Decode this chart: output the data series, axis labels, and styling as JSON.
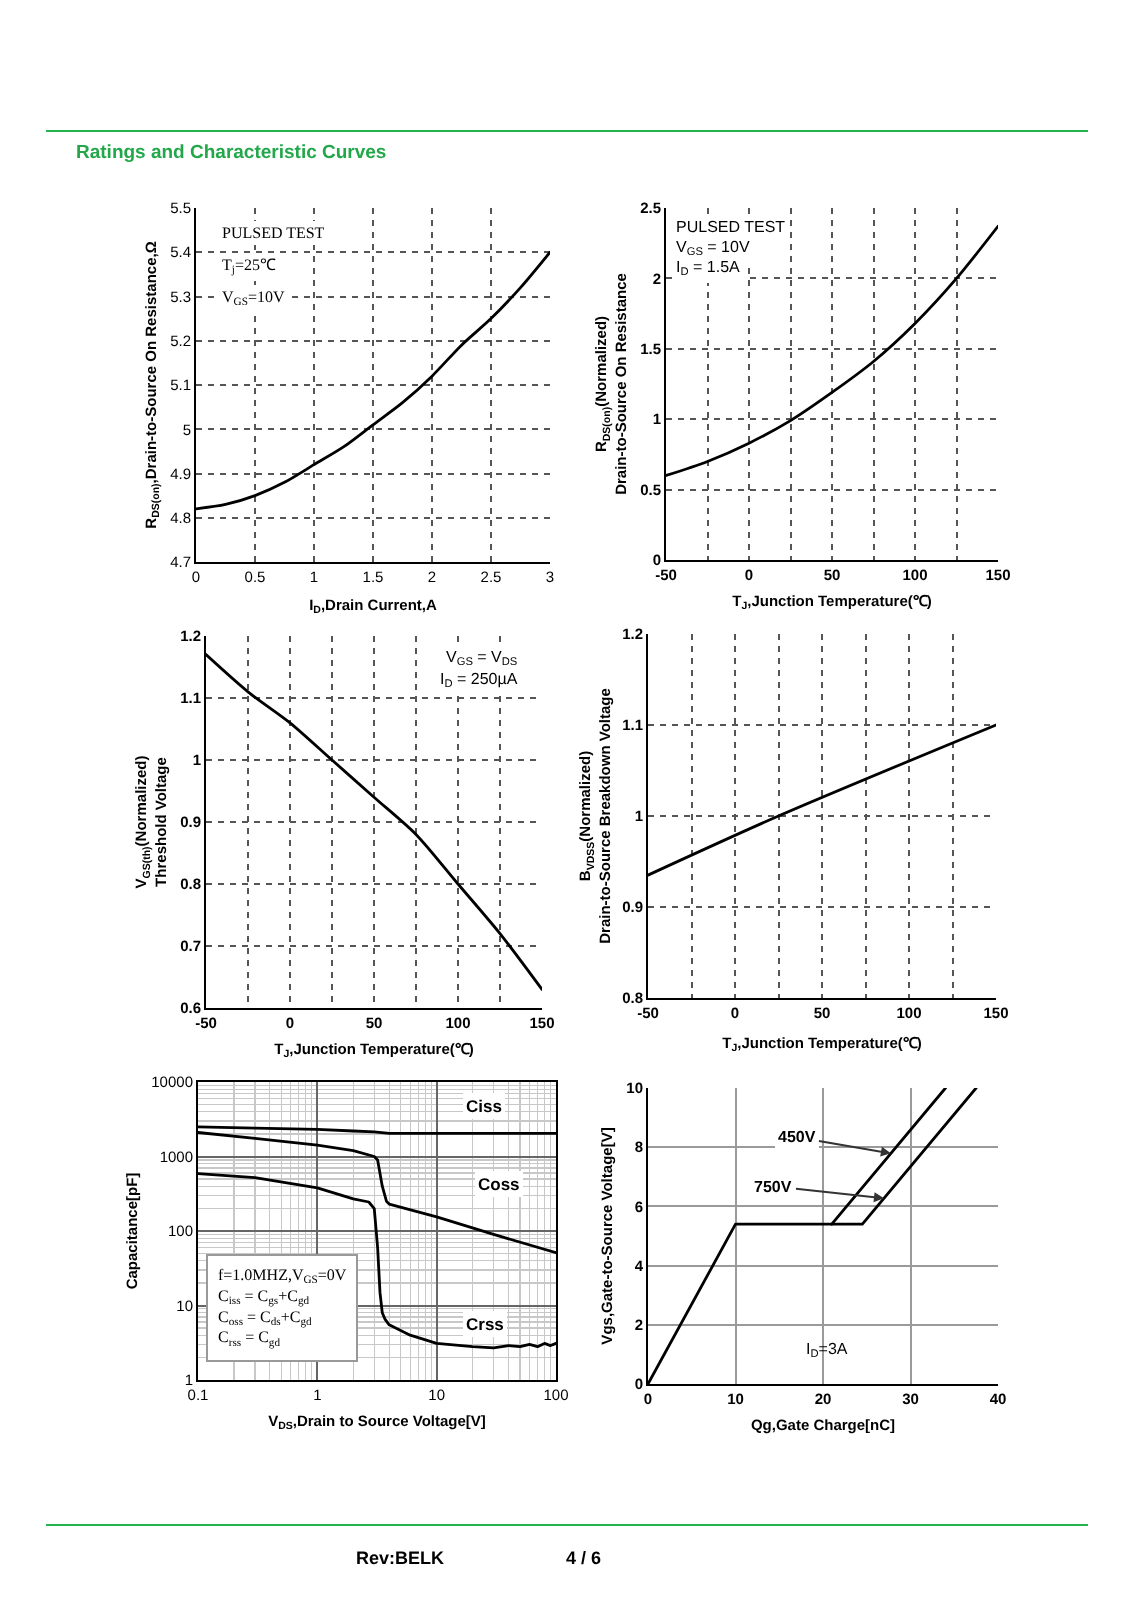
{
  "chart_data": [
    {
      "type": "line",
      "title": "Ratings and Characteristic Curves",
      "xlabel": "I$_{D}$,Drain Current,A",
      "ylabel": "R$_{DS(on)}$,Drain-to-Source On Resistance,Ω",
      "annotations": [
        "PULSED TEST",
        "T$_{j}$=25℃",
        "V$_{GS}$=10V"
      ],
      "x": [
        0,
        0.25,
        0.5,
        0.75,
        1,
        1.25,
        1.5,
        1.75,
        2,
        2.25,
        2.5,
        2.75,
        3
      ],
      "values": [
        4.82,
        4.83,
        4.85,
        4.88,
        4.92,
        4.96,
        5.01,
        5.06,
        5.12,
        5.19,
        5.25,
        5.32,
        5.4
      ],
      "color": "#000000",
      "xlim": [
        0,
        3
      ],
      "ylim": [
        4.7,
        5.5
      ],
      "xticks": [
        0,
        0.5,
        1,
        1.5,
        2,
        2.5,
        3
      ],
      "yticks": [
        4.7,
        4.8,
        4.9,
        5,
        5.1,
        5.2,
        5.3,
        5.4,
        5.5
      ],
      "grid": true
    },
    {
      "type": "line",
      "xlabel": "T$_{J}$,Junction Temperature(℃)",
      "ylabel": "R$_{DS(on)}$(Normalized)\nDrain-to-Source On Resistance",
      "annotations": [
        "PULSED TEST",
        "V$_{GS}$ = 10V",
        "I$_{D}$ = 1.5A"
      ],
      "x": [
        -50,
        -25,
        0,
        25,
        50,
        75,
        100,
        125,
        150
      ],
      "values": [
        0.6,
        0.7,
        0.83,
        0.99,
        1.19,
        1.41,
        1.68,
        2.0,
        2.37
      ],
      "color": "#000000",
      "xlim": [
        -50,
        150
      ],
      "ylim": [
        0,
        2.5
      ],
      "xticks": [
        -50,
        {
          "value": -25,
          "label": null
        },
        0,
        {
          "value": 25,
          "label": null
        },
        50,
        {
          "value": 75,
          "label": null
        },
        100,
        {
          "value": 125,
          "label": null
        },
        150
      ],
      "yticks": [
        0,
        0.5,
        1,
        1.5,
        2,
        2.5
      ],
      "grid": true
    },
    {
      "type": "line",
      "xlabel": "T$_{J}$,Junction Temperature(℃)",
      "ylabel": "V$_{GS(th)}$(Normalized)\nThreshold Voltage",
      "annotations": [
        "V$_{GS}$ = V$_{DS}$",
        "I$_{D}$ = 250µA"
      ],
      "x": [
        -50,
        -25,
        0,
        25,
        50,
        75,
        100,
        125,
        150
      ],
      "values": [
        1.17,
        1.11,
        1.06,
        1.0,
        0.94,
        0.88,
        0.8,
        0.72,
        0.63
      ],
      "color": "#000000",
      "xlim": [
        -50,
        150
      ],
      "ylim": [
        0.6,
        1.2
      ],
      "xticks": [
        -50,
        {
          "value": -25,
          "label": null
        },
        0,
        {
          "value": 25,
          "label": null
        },
        50,
        {
          "value": 75,
          "label": null
        },
        100,
        {
          "value": 125,
          "label": null
        },
        150
      ],
      "yticks": [
        0.6,
        0.7,
        0.8,
        0.9,
        1,
        1.1,
        1.2
      ],
      "grid": true
    },
    {
      "type": "line",
      "xlabel": "T$_{J}$,Junction Temperature(℃)",
      "ylabel": "B$_{VDSS}$(Normalized)\nDrain-to-Source Breakdown Voltage",
      "x": [
        -50,
        25,
        150
      ],
      "values": [
        0.935,
        1.0,
        1.1
      ],
      "color": "#000000",
      "xlim": [
        -50,
        150
      ],
      "ylim": [
        0.8,
        1.2
      ],
      "xticks": [
        -50,
        {
          "value": -25,
          "label": null
        },
        0,
        {
          "value": 25,
          "label": null
        },
        50,
        {
          "value": 75,
          "label": null
        },
        100,
        {
          "value": 125,
          "label": null
        },
        150
      ],
      "yticks": [
        0.8,
        0.9,
        1,
        1.1,
        1.2
      ],
      "grid": true
    },
    {
      "type": "line",
      "xlabel": "V$_{DS}$,Drain to Source Voltage[V]",
      "ylabel": "Capacitance[pF]",
      "annotations": [
        "f=1.0MHZ,V$_{GS}$=0V",
        "C$_{iss}$ = C$_{gs}$+C$_{gd}$",
        "C$_{oss}$ = C$_{ds}$+C$_{gd}$",
        "C$_{rss}$ = C$_{gd}$"
      ],
      "series": [
        {
          "name": "Ciss",
          "color": "#000000",
          "x": [
            0.1,
            0.3,
            1,
            2,
            3,
            4,
            10,
            100
          ],
          "values": [
            2500,
            2400,
            2320,
            2200,
            2140,
            2050,
            2050,
            2050
          ]
        },
        {
          "name": "Coss",
          "color": "#000000",
          "x": [
            0.1,
            0.3,
            1,
            2,
            3,
            3.2,
            3.5,
            3.8,
            4,
            10,
            30,
            100
          ],
          "values": [
            2100,
            1750,
            1420,
            1200,
            1000,
            900,
            400,
            250,
            230,
            155,
            90,
            51
          ]
        },
        {
          "name": "Crss",
          "color": "#000000",
          "x": [
            0.1,
            0.3,
            1,
            2,
            2.7,
            3,
            3.2,
            3.35,
            3.5,
            3.7,
            4,
            6,
            10,
            20,
            30,
            40,
            50,
            60,
            70,
            80,
            90,
            100
          ],
          "values": [
            590,
            520,
            380,
            270,
            245,
            200,
            60,
            15,
            8,
            6.5,
            5.5,
            4,
            3.1,
            2.8,
            2.7,
            2.9,
            2.8,
            3.0,
            2.8,
            3.1,
            2.9,
            3.1
          ]
        }
      ],
      "xlim": [
        0.1,
        100
      ],
      "ylim": [
        1,
        10000
      ],
      "xticks": [
        0.1,
        1,
        10,
        100
      ],
      "yticks": [
        1,
        10,
        100,
        1000,
        10000
      ],
      "log": "xy",
      "grid": true
    },
    {
      "type": "line",
      "xlabel": "Qg,Gate Charge[nC]",
      "ylabel": "Vgs,Gate-to-Source Voltage[V]",
      "annotations": [
        "I$_{D}$=3A"
      ],
      "series": [
        {
          "name": "450V",
          "color": "#000000",
          "x": [
            21,
            34
          ],
          "values": [
            5.4,
            10
          ]
        },
        {
          "name": "750V",
          "color": "#000000",
          "x": [
            0,
            10,
            24.5,
            37.5
          ],
          "values": [
            0,
            5.4,
            5.4,
            10
          ]
        }
      ],
      "xlim": [
        0,
        40
      ],
      "ylim": [
        0,
        10
      ],
      "xticks": [
        0,
        10,
        20,
        30,
        40
      ],
      "yticks": [
        0,
        2,
        4,
        6,
        8,
        10
      ],
      "grid": true
    },
    {
      "type": "other",
      "annotations": [
        "Rev:BELK",
        "4 / 6"
      ]
    }
  ]
}
